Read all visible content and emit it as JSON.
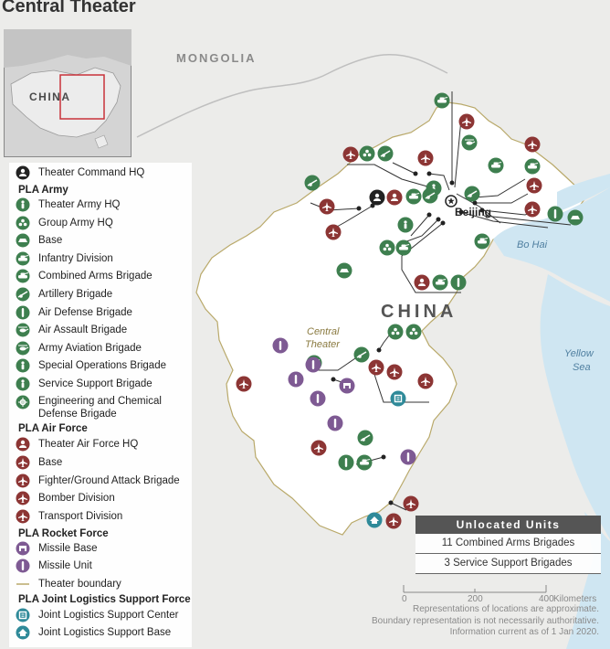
{
  "title": "Central Theater",
  "map_labels": {
    "mongolia": "MONGOLIA",
    "china": "CHINA",
    "theater": "Central\nTheater",
    "beijing": "Beijing",
    "bohai": "Bo Hai",
    "yellow_sea": "Yellow\nSea",
    "inset_china": "CHINA"
  },
  "legend": {
    "theater_hq": "Theater Command HQ",
    "pla_army": "PLA  Army",
    "army_items": [
      "Theater Army HQ",
      "Group Army HQ",
      "Base",
      "Infantry Division",
      "Combined Arms Brigade",
      "Artillery Brigade",
      "Air Defense Brigade",
      "Air Assault Brigade",
      "Army Aviation Brigade",
      "Special Operations Brigade",
      "Service Support Brigade"
    ],
    "engineering": "Engineering and Chemical\nDefense Brigade",
    "pla_air_force": "PLA Air Force",
    "air_items": [
      "Theater Air Force HQ",
      "Base",
      "Fighter/Ground Attack Brigade",
      "Bomber Division",
      "Transport Division"
    ],
    "pla_rocket_force": "PLA Rocket Force",
    "rocket_items": [
      "Missile Base",
      "Missile Unit"
    ],
    "theater_boundary": "Theater boundary",
    "pla_jlsf": "PLA Joint Logistics Support Force",
    "jlsf_items": [
      "Joint Logistics Support Center",
      "Joint Logistics Support Base"
    ]
  },
  "unlocated": {
    "header": "Unlocated Units",
    "rows": [
      "11 Combined Arms Brigades",
      "3 Service Support Brigades"
    ]
  },
  "scale": {
    "ticks": [
      "0",
      "200",
      "400"
    ],
    "unit": "Kilometers"
  },
  "notes": [
    "Representations of locations are approximate.",
    "Boundary representation is not necessarily authoritative.",
    "Information current as of 1 Jan 2020."
  ],
  "colors": {
    "army_green": "#3e7f4f",
    "air_red": "#8c3534",
    "rocket_purple": "#7e5a93",
    "jlsf_teal": "#2f8a99",
    "land": "#ffffff",
    "outside": "#ececea",
    "water": "#cfe6f2"
  }
}
